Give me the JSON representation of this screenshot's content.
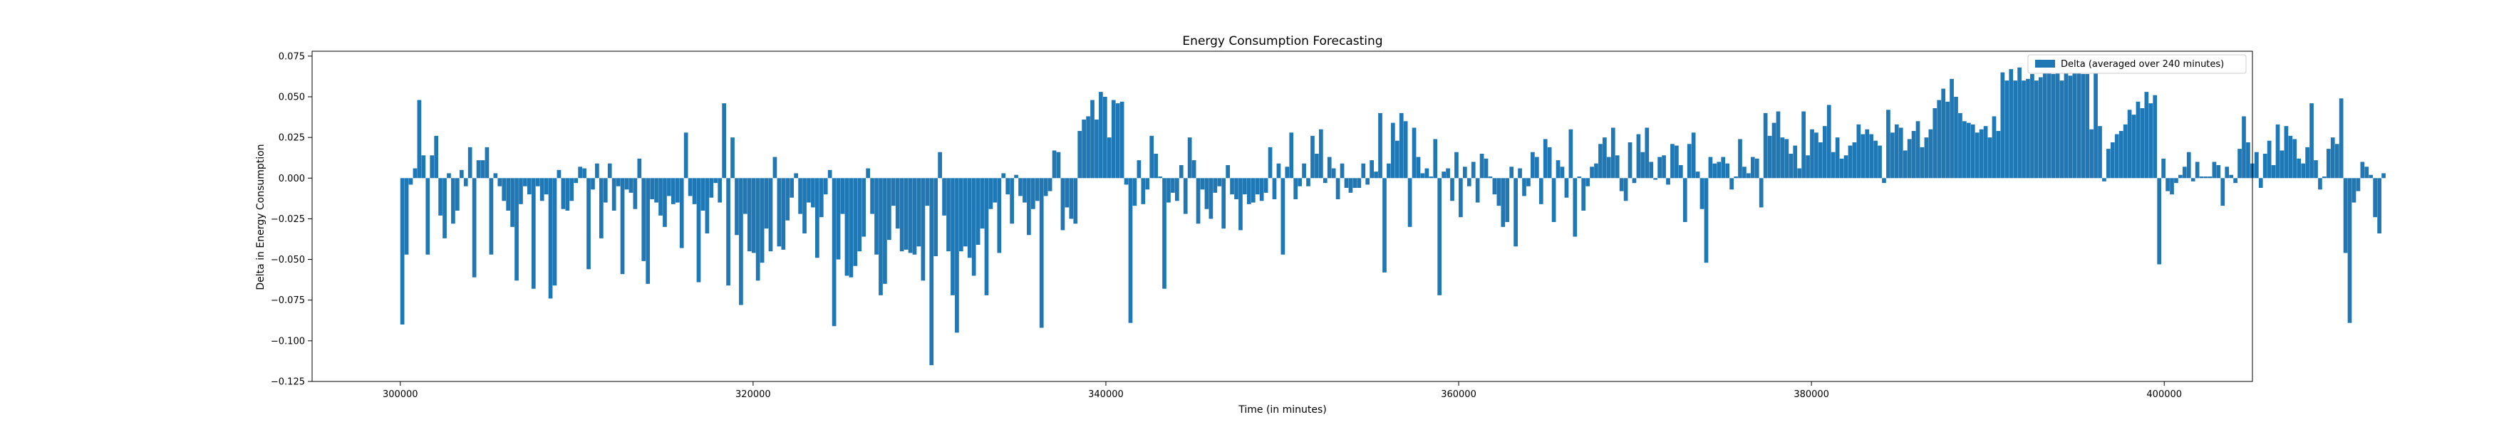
{
  "chart_data": {
    "type": "bar",
    "title": "Energy Consumption Forecasting",
    "xlabel": "Time (in minutes)",
    "ylabel": "Delta in Energy Consumption",
    "xlim": [
      295000,
      405000
    ],
    "ylim": [
      -0.125,
      0.078
    ],
    "xticks": [
      300000,
      320000,
      340000,
      360000,
      380000,
      400000
    ],
    "xtick_labels": [
      "300000",
      "320000",
      "340000",
      "360000",
      "380000",
      "400000"
    ],
    "yticks": [
      -0.125,
      -0.1,
      -0.075,
      -0.05,
      -0.025,
      0.0,
      0.025,
      0.05,
      0.075
    ],
    "ytick_labels": [
      "−0.125",
      "−0.100",
      "−0.075",
      "−0.050",
      "−0.025",
      "0.000",
      "0.025",
      "0.050",
      "0.075"
    ],
    "grid": false,
    "legend_position": "top-right",
    "bar_color": "#1f77b4",
    "x_start": 300000,
    "x_step": 240,
    "series": [
      {
        "name": "Delta (averaged over 240 minutes)",
        "values": [
          -0.09,
          -0.047,
          -0.004,
          0.006,
          0.048,
          0.014,
          -0.047,
          0.014,
          0.026,
          -0.023,
          -0.037,
          0.003,
          -0.028,
          -0.02,
          0.005,
          -0.005,
          0.019,
          -0.061,
          0.011,
          0.011,
          0.019,
          -0.047,
          0.003,
          -0.005,
          -0.014,
          -0.02,
          -0.03,
          -0.063,
          -0.016,
          -0.005,
          -0.01,
          -0.068,
          -0.005,
          -0.014,
          -0.01,
          -0.074,
          -0.066,
          0.005,
          -0.019,
          -0.02,
          -0.014,
          -0.003,
          0.007,
          0.006,
          -0.056,
          -0.007,
          0.009,
          -0.037,
          -0.015,
          0.009,
          -0.02,
          -0.005,
          -0.059,
          -0.007,
          -0.009,
          -0.019,
          0.012,
          -0.051,
          -0.065,
          -0.013,
          -0.015,
          -0.023,
          -0.03,
          -0.011,
          -0.016,
          -0.015,
          -0.043,
          0.028,
          -0.011,
          -0.016,
          -0.064,
          -0.02,
          -0.034,
          -0.012,
          -0.003,
          -0.015,
          0.046,
          -0.066,
          0.025,
          -0.035,
          -0.078,
          -0.022,
          -0.045,
          -0.046,
          -0.063,
          -0.052,
          -0.031,
          -0.045,
          0.013,
          -0.042,
          -0.044,
          -0.026,
          -0.012,
          0.003,
          -0.022,
          -0.034,
          -0.015,
          -0.018,
          -0.049,
          -0.024,
          -0.01,
          0.005,
          -0.091,
          -0.05,
          -0.022,
          -0.06,
          -0.061,
          -0.054,
          -0.045,
          -0.036,
          0.006,
          -0.022,
          -0.047,
          -0.072,
          -0.065,
          -0.038,
          -0.017,
          -0.031,
          -0.045,
          -0.044,
          -0.046,
          -0.047,
          -0.042,
          -0.063,
          -0.017,
          -0.115,
          -0.048,
          0.016,
          -0.023,
          -0.045,
          -0.072,
          -0.095,
          -0.045,
          -0.042,
          -0.049,
          -0.06,
          -0.041,
          -0.031,
          -0.072,
          -0.019,
          -0.015,
          -0.046,
          0.003,
          -0.01,
          -0.028,
          0.002,
          -0.011,
          -0.015,
          -0.035,
          -0.019,
          -0.014,
          -0.092,
          -0.011,
          -0.008,
          0.017,
          0.016,
          -0.032,
          -0.018,
          -0.025,
          -0.028,
          0.029,
          0.036,
          0.038,
          0.048,
          0.036,
          0.053,
          0.05,
          0.025,
          0.048,
          0.046,
          0.047,
          -0.004,
          -0.089,
          -0.017,
          0.011,
          -0.016,
          -0.007,
          0.026,
          0.015,
          0.001,
          -0.068,
          -0.015,
          -0.009,
          -0.014,
          0.008,
          -0.022,
          0.025,
          0.011,
          -0.028,
          -0.007,
          -0.019,
          -0.025,
          -0.009,
          -0.005,
          -0.031,
          0.008,
          -0.01,
          -0.013,
          -0.032,
          -0.01,
          -0.016,
          -0.015,
          -0.01,
          -0.014,
          -0.009,
          0.019,
          -0.013,
          0.009,
          -0.047,
          0.007,
          0.028,
          -0.013,
          -0.005,
          0.009,
          -0.005,
          0.026,
          0.015,
          0.03,
          -0.003,
          0.013,
          0.006,
          -0.013,
          0.009,
          -0.006,
          -0.009,
          -0.006,
          -0.006,
          0.009,
          -0.004,
          0.011,
          0.004,
          0.04,
          -0.058,
          0.009,
          0.034,
          0.023,
          0.04,
          0.035,
          -0.03,
          0.031,
          0.013,
          0.003,
          0.006,
          0.001,
          0.024,
          -0.072,
          0.004,
          0.006,
          -0.014,
          0.016,
          -0.024,
          0.007,
          -0.005,
          0.01,
          -0.015,
          0.015,
          0.012,
          0.001,
          -0.01,
          -0.017,
          -0.03,
          -0.027,
          0.007,
          -0.042,
          0.006,
          -0.011,
          -0.005,
          0.016,
          0.013,
          -0.016,
          0.024,
          0.019,
          -0.027,
          0.011,
          0.007,
          -0.012,
          0.03,
          -0.036,
          0.001,
          -0.02,
          -0.005,
          0.007,
          0.009,
          0.021,
          0.025,
          0.013,
          0.031,
          0.014,
          -0.008,
          -0.014,
          0.022,
          -0.003,
          0.027,
          0.016,
          0.031,
          0.01,
          -0.001,
          0.013,
          0.014,
          -0.004,
          0.021,
          0.02,
          0.008,
          -0.027,
          0.021,
          0.028,
          0.004,
          -0.019,
          -0.052,
          0.013,
          0.009,
          0.01,
          0.013,
          0.009,
          -0.007,
          0.001,
          0.024,
          0.007,
          0.003,
          0.013,
          0.012,
          -0.018,
          0.04,
          0.026,
          0.034,
          0.041,
          0.025,
          0.024,
          0.015,
          0.02,
          0.006,
          0.041,
          0.014,
          0.03,
          0.028,
          0.022,
          0.032,
          0.045,
          0.016,
          0.025,
          0.012,
          0.014,
          0.02,
          0.022,
          0.033,
          0.027,
          0.03,
          0.027,
          0.023,
          0.02,
          -0.003,
          0.042,
          0.028,
          0.033,
          0.031,
          0.017,
          0.024,
          0.029,
          0.035,
          0.019,
          0.025,
          0.03,
          0.043,
          0.048,
          0.055,
          0.047,
          0.061,
          0.05,
          0.04,
          0.035,
          0.034,
          0.033,
          0.028,
          0.03,
          0.032,
          0.025,
          0.038,
          0.029,
          0.065,
          0.06,
          0.067,
          0.06,
          0.068,
          0.06,
          0.061,
          0.064,
          0.06,
          0.062,
          0.066,
          0.069,
          0.064,
          0.066,
          0.06,
          0.067,
          0.063,
          0.067,
          0.066,
          0.064,
          0.064,
          0.03,
          0.065,
          0.032,
          -0.002,
          0.018,
          0.022,
          0.027,
          0.029,
          0.033,
          0.042,
          0.039,
          0.047,
          0.043,
          0.053,
          0.046,
          0.051,
          -0.053,
          0.012,
          -0.008,
          -0.01,
          -0.003,
          0.002,
          0.007,
          0.016,
          -0.002,
          0.01,
          0.001,
          0.001,
          0.001,
          0.01,
          0.008,
          -0.017,
          0.007,
          0.002,
          -0.003,
          0.018,
          0.038,
          0.022,
          0.009,
          0.016,
          -0.006,
          0.015,
          0.023,
          0.008,
          0.033,
          0.017,
          0.032,
          0.026,
          0.024,
          0.012,
          0.009,
          0.019,
          0.046,
          0.011,
          -0.007,
          0.001,
          0.018,
          0.025,
          0.021,
          0.049,
          -0.046,
          -0.089,
          -0.015,
          -0.008,
          0.01,
          0.007,
          0.002,
          -0.024,
          -0.034,
          0.003
        ]
      }
    ]
  }
}
